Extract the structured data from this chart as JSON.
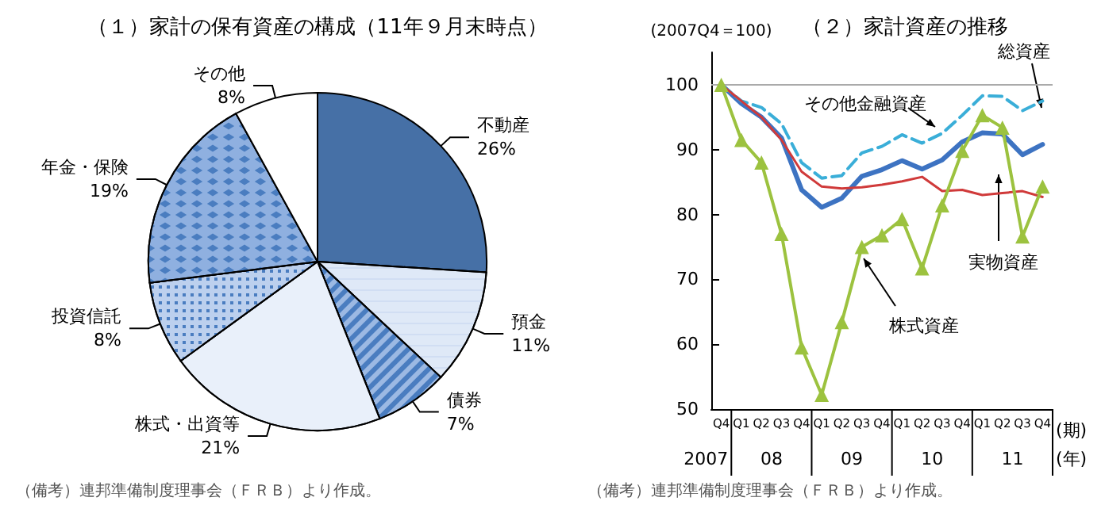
{
  "chart_data": [
    {
      "type": "pie",
      "title": "（１）家計の保有資産の構成（11年９月末時点）",
      "categories": [
        "不動産",
        "預金",
        "債券",
        "株式・出資等",
        "投資信託",
        "年金・保険",
        "その他"
      ],
      "values": [
        26,
        11,
        7,
        21,
        8,
        19,
        8
      ],
      "value_labels": [
        "26%",
        "11%",
        "7%",
        "21%",
        "8%",
        "19%",
        "8%"
      ],
      "colors": [
        "#4670a6",
        "#dfe9f7",
        "#9cb9e3",
        "#e9f0fa",
        "#bcd0ee",
        "#8fb0e0",
        "#ffffff"
      ],
      "legend": false,
      "annotations": [
        "（備考）連邦準備制度理事会（ＦＲＢ）より作成。"
      ]
    },
    {
      "type": "line",
      "title": "（２）家計資産の推移",
      "ylabel": "(2007Q4＝100)",
      "xlabel": "(期)",
      "categories": [
        "Q4",
        "Q1",
        "Q2",
        "Q3",
        "Q4",
        "Q1",
        "Q2",
        "Q3",
        "Q4",
        "Q1",
        "Q2",
        "Q3",
        "Q4",
        "Q1",
        "Q2",
        "Q3",
        "Q4"
      ],
      "series": [
        {
          "name": "総資産",
          "color": "#3d73c2",
          "values": [
            100,
            97.1,
            95,
            91.8,
            83.8,
            81.1,
            82.5,
            85.9,
            86.9,
            88.3,
            87,
            88.4,
            91.2,
            92.6,
            92.4,
            89.2,
            90.8
          ]
        },
        {
          "name": "その他金融資産",
          "color": "#3aaed8",
          "line_style": "dashed",
          "values": [
            100,
            97.5,
            96.5,
            94,
            88,
            85.6,
            86,
            89.5,
            90.5,
            92.3,
            91,
            92.5,
            95.3,
            98.3,
            98.2,
            96,
            97.5
          ]
        },
        {
          "name": "実物資産",
          "color": "#d03a3a",
          "values": [
            100,
            97.5,
            95,
            91.5,
            86.6,
            84.3,
            84,
            84.2,
            84.6,
            85.1,
            85.8,
            83.6,
            83.8,
            83,
            83.3,
            83.6,
            82.7
          ]
        },
        {
          "name": "株式資産",
          "color": "#9cc23f",
          "marker": "triangle",
          "values": [
            100,
            91.5,
            88,
            77,
            59.5,
            52.2,
            63.4,
            75,
            76.8,
            79.3,
            71.7,
            81.4,
            89.8,
            95.3,
            93.4,
            76.6,
            84.3
          ]
        }
      ],
      "ylim": [
        50,
        105
      ],
      "yticks": [
        50,
        60,
        70,
        80,
        90,
        100
      ],
      "ref_lines": [
        {
          "axis": "y",
          "value": 100,
          "color": "#aaaaaa"
        }
      ],
      "grid": false,
      "legend": false,
      "annotations": [
        "2007",
        "08",
        "09",
        "10",
        "11",
        "(年)",
        "（備考）連邦準備制度理事会（ＦＲＢ）より作成。"
      ]
    }
  ]
}
